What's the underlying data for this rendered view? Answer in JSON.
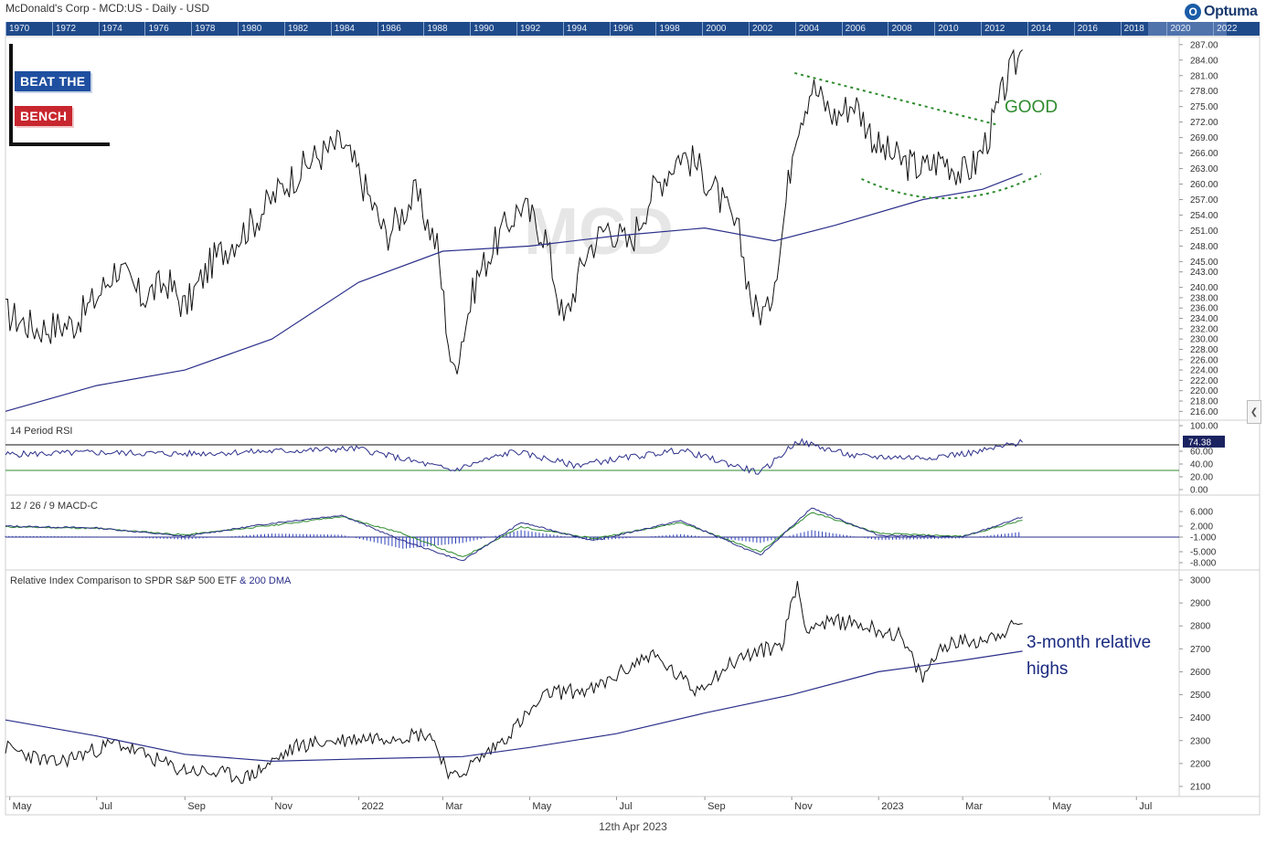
{
  "header": {
    "title": "McDonald's Corp - MCD:US - Daily - USD",
    "brand": "Optuma"
  },
  "timeline": {
    "years": [
      "1970",
      "1972",
      "1974",
      "1976",
      "1978",
      "1980",
      "1982",
      "1984",
      "1986",
      "1988",
      "1990",
      "1992",
      "1994",
      "1996",
      "1998",
      "2000",
      "2002",
      "2004",
      "2006",
      "2008",
      "2010",
      "2012",
      "2014",
      "2016",
      "2018",
      "2020",
      "2022"
    ]
  },
  "branding": {
    "line1": "BEAT THE",
    "line2": "BENCH"
  },
  "watermark": "MCD",
  "footer": {
    "date": "12th Apr 2023"
  },
  "colors": {
    "price": "#111111",
    "ma": "#2b2f8a",
    "annotation_green": "#2e8b2e",
    "rsi_upper": "#111111",
    "rsi_lower": "#2e8b2e",
    "macd_hist": "#2b3fb8",
    "macd_signal": "#2e8b2e",
    "annotation_blue": "#1a2a80"
  },
  "chart_data": [
    {
      "id": "price",
      "type": "line",
      "title": "McDonald's Corp - MCD:US - Daily - USD",
      "x_ticks": [
        "May",
        "Jul",
        "Sep",
        "Nov",
        "2022",
        "Mar",
        "May",
        "Jul",
        "Sep",
        "Nov",
        "2023",
        "Mar",
        "May",
        "Jul"
      ],
      "x_range": [
        "2021-04-28",
        "2023-07-31"
      ],
      "y_ticks": [
        216,
        218,
        220,
        222,
        224,
        226,
        228,
        230,
        232,
        234,
        236,
        238,
        240,
        243,
        245,
        248,
        251,
        254,
        257,
        260,
        263,
        266,
        269,
        272,
        275,
        278,
        281,
        284,
        287
      ],
      "ylim": [
        215,
        287.5
      ],
      "series": [
        {
          "role": "price",
          "x": [
            "2021-04-28",
            "2021-05-20",
            "2021-06-15",
            "2021-07-01",
            "2021-07-15",
            "2021-08-01",
            "2021-08-20",
            "2021-09-01",
            "2021-09-20",
            "2021-10-01",
            "2021-10-20",
            "2021-11-10",
            "2021-12-01",
            "2021-12-20",
            "2022-01-01",
            "2022-01-20",
            "2022-02-10",
            "2022-02-25",
            "2022-03-08",
            "2022-03-25",
            "2022-04-10",
            "2022-04-25",
            "2022-05-12",
            "2022-05-25",
            "2022-06-10",
            "2022-06-25",
            "2022-07-10",
            "2022-07-25",
            "2022-08-15",
            "2022-08-25",
            "2022-09-10",
            "2022-09-25",
            "2022-10-05",
            "2022-10-15",
            "2022-10-25",
            "2022-11-03",
            "2022-11-15",
            "2022-12-01",
            "2022-12-15",
            "2023-01-01",
            "2023-01-20",
            "2023-02-01",
            "2023-02-15",
            "2023-03-01",
            "2023-03-10",
            "2023-03-20",
            "2023-04-01",
            "2023-04-12"
          ],
          "values": [
            235,
            232,
            233,
            238,
            244,
            238,
            241,
            236,
            245,
            248,
            253,
            260,
            265,
            268,
            262,
            250,
            258,
            248,
            223,
            242,
            250,
            256,
            250,
            233,
            247,
            252,
            248,
            258,
            266,
            264,
            258,
            250,
            236,
            235,
            250,
            270,
            279,
            273,
            276,
            267,
            264,
            263,
            265,
            262,
            264,
            270,
            280,
            286
          ]
        },
        {
          "role": "ma",
          "x": [
            "2021-04-28",
            "2021-07-01",
            "2021-09-01",
            "2021-11-01",
            "2022-01-01",
            "2022-03-01",
            "2022-05-01",
            "2022-07-01",
            "2022-09-01",
            "2022-10-20",
            "2022-12-01",
            "2023-02-01",
            "2023-03-15",
            "2023-04-12"
          ],
          "values": [
            216,
            221,
            224,
            230,
            241,
            247,
            248,
            250,
            251.5,
            249,
            252,
            257,
            259,
            262
          ]
        }
      ]
    },
    {
      "id": "rsi",
      "type": "line",
      "title": "14 Period RSI",
      "y_ticks": [
        "100.00",
        "60.00",
        "40.00",
        "20.00",
        "0.00"
      ],
      "ylim": [
        0,
        100
      ],
      "levels": [
        70,
        30
      ],
      "last_value": "74.38",
      "series": [
        {
          "role": "rsi",
          "x": [
            "2021-04-28",
            "2021-07-01",
            "2021-09-01",
            "2021-11-01",
            "2022-01-01",
            "2022-03-08",
            "2022-04-20",
            "2022-06-01",
            "2022-08-15",
            "2022-10-10",
            "2022-11-05",
            "2022-12-15",
            "2023-02-01",
            "2023-03-10",
            "2023-04-12"
          ],
          "values": [
            55,
            58,
            56,
            60,
            64,
            30,
            60,
            38,
            62,
            26,
            76,
            52,
            50,
            58,
            74
          ]
        }
      ]
    },
    {
      "id": "macd",
      "type": "line",
      "title": "12 / 26 / 9 MACD-C",
      "y_ticks": [
        "6.000",
        "2.000",
        "-1.000",
        "-5.000",
        "-8.000"
      ],
      "ylim": [
        -8.5,
        9
      ],
      "series": [
        {
          "role": "macd",
          "x": [
            "2021-04-28",
            "2021-07-01",
            "2021-09-01",
            "2021-11-01",
            "2021-12-20",
            "2022-02-01",
            "2022-03-15",
            "2022-04-25",
            "2022-06-15",
            "2022-08-15",
            "2022-10-10",
            "2022-11-15",
            "2023-01-01",
            "2023-03-01",
            "2023-04-12"
          ],
          "values": [
            2,
            1.5,
            -0.8,
            2.8,
            5,
            -2,
            -7.5,
            3,
            -2,
            3.5,
            -6,
            7,
            -0.5,
            -1,
            4.5
          ]
        },
        {
          "role": "signal",
          "x": [
            "2021-04-28",
            "2021-07-01",
            "2021-09-01",
            "2021-11-01",
            "2021-12-20",
            "2022-02-01",
            "2022-03-15",
            "2022-04-25",
            "2022-06-15",
            "2022-08-15",
            "2022-10-10",
            "2022-11-15",
            "2023-01-01",
            "2023-03-01",
            "2023-04-12"
          ],
          "values": [
            1.8,
            1.4,
            -0.4,
            2.2,
            4.6,
            0,
            -6.5,
            1.8,
            -1.4,
            3,
            -5,
            5.8,
            0,
            -0.8,
            3.6
          ]
        }
      ]
    },
    {
      "id": "relative",
      "type": "line",
      "title": "Relative Index Comparison to SPDR S&P 500 ETF",
      "title_suffix": "& 200 DMA",
      "y_ticks": [
        2100,
        2200,
        2300,
        2400,
        2500,
        2600,
        2700,
        2800,
        2900,
        3000
      ],
      "ylim": [
        2080,
        3020
      ],
      "series": [
        {
          "role": "ratio",
          "x": [
            "2021-04-28",
            "2021-06-01",
            "2021-07-15",
            "2021-08-25",
            "2021-10-15",
            "2021-11-20",
            "2022-01-01",
            "2022-02-20",
            "2022-03-08",
            "2022-04-10",
            "2022-05-15",
            "2022-06-15",
            "2022-07-25",
            "2022-08-25",
            "2022-09-25",
            "2022-10-25",
            "2022-11-05",
            "2022-11-10",
            "2022-12-10",
            "2023-01-15",
            "2023-02-01",
            "2023-02-15",
            "2023-03-15",
            "2023-04-12"
          ],
          "values": [
            2270,
            2200,
            2290,
            2180,
            2140,
            2280,
            2310,
            2330,
            2130,
            2290,
            2510,
            2520,
            2680,
            2520,
            2660,
            2720,
            2990,
            2800,
            2820,
            2760,
            2570,
            2720,
            2740,
            2810
          ]
        },
        {
          "role": "ma",
          "x": [
            "2021-04-28",
            "2021-07-01",
            "2021-09-01",
            "2021-11-01",
            "2022-01-01",
            "2022-03-15",
            "2022-05-01",
            "2022-07-01",
            "2022-09-01",
            "2022-11-01",
            "2023-01-01",
            "2023-03-01",
            "2023-04-12"
          ],
          "values": [
            2390,
            2320,
            2240,
            2210,
            2220,
            2230,
            2270,
            2330,
            2420,
            2500,
            2600,
            2650,
            2690
          ]
        }
      ]
    }
  ],
  "annotations": {
    "good": "GOOD",
    "relative_note_line1": "3-month relative",
    "relative_note_line2": "highs"
  }
}
